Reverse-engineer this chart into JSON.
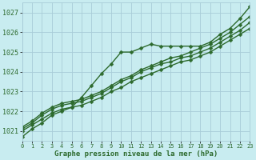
{
  "title": "Graphe pression niveau de la mer (hPa)",
  "bg_color": "#c8ecf0",
  "grid_color": "#a8ccd8",
  "line_color": "#2d6a2d",
  "xlim": [
    0,
    23
  ],
  "ylim": [
    1020.5,
    1027.5
  ],
  "yticks": [
    1021,
    1022,
    1023,
    1024,
    1025,
    1026,
    1027
  ],
  "xticks": [
    0,
    1,
    2,
    3,
    4,
    5,
    6,
    7,
    8,
    9,
    10,
    11,
    12,
    13,
    14,
    15,
    16,
    17,
    18,
    19,
    20,
    21,
    22,
    23
  ],
  "series": [
    {
      "x": [
        0,
        1,
        2,
        3,
        4,
        5,
        6,
        7,
        8,
        9,
        10,
        11,
        12,
        13,
        14,
        15,
        16,
        17,
        18,
        19,
        20,
        21,
        22,
        23
      ],
      "y": [
        1020.7,
        1021.1,
        1021.4,
        1021.8,
        1022.0,
        1022.2,
        1022.7,
        1023.3,
        1023.9,
        1024.4,
        1025.0,
        1025.0,
        1025.2,
        1025.4,
        1025.3,
        1025.3,
        1025.3,
        1025.3,
        1025.3,
        1025.5,
        1025.9,
        1026.2,
        1026.7,
        1027.3
      ],
      "marker": "D",
      "markersize": 2.5,
      "linewidth": 1.0
    },
    {
      "x": [
        0,
        1,
        2,
        3,
        4,
        5,
        6,
        7,
        8,
        9,
        10,
        11,
        12,
        13,
        14,
        15,
        16,
        17,
        18,
        19,
        20,
        21,
        22,
        23
      ],
      "y": [
        1021.0,
        1021.3,
        1021.6,
        1021.9,
        1022.1,
        1022.2,
        1022.3,
        1022.5,
        1022.7,
        1023.0,
        1023.2,
        1023.5,
        1023.7,
        1023.9,
        1024.1,
        1024.3,
        1024.5,
        1024.6,
        1024.8,
        1025.0,
        1025.3,
        1025.6,
        1025.9,
        1026.2
      ],
      "marker": "D",
      "markersize": 2.5,
      "linewidth": 1.0
    },
    {
      "x": [
        0,
        1,
        2,
        3,
        4,
        5,
        6,
        7,
        8,
        9,
        10,
        11,
        12,
        13,
        14,
        15,
        16,
        17,
        18,
        19,
        20,
        21,
        22,
        23
      ],
      "y": [
        1021.1,
        1021.4,
        1021.8,
        1022.1,
        1022.3,
        1022.4,
        1022.5,
        1022.7,
        1022.9,
        1023.2,
        1023.5,
        1023.7,
        1024.0,
        1024.2,
        1024.4,
        1024.5,
        1024.7,
        1024.8,
        1025.0,
        1025.2,
        1025.5,
        1025.8,
        1026.1,
        1026.5
      ],
      "marker": "D",
      "markersize": 2.5,
      "linewidth": 1.0
    },
    {
      "x": [
        0,
        1,
        2,
        3,
        4,
        5,
        6,
        7,
        8,
        9,
        10,
        11,
        12,
        13,
        14,
        15,
        16,
        17,
        18,
        19,
        20,
        21,
        22,
        23
      ],
      "y": [
        1021.2,
        1021.5,
        1021.9,
        1022.2,
        1022.4,
        1022.5,
        1022.6,
        1022.8,
        1023.0,
        1023.3,
        1023.6,
        1023.8,
        1024.1,
        1024.3,
        1024.5,
        1024.7,
        1024.8,
        1025.0,
        1025.2,
        1025.4,
        1025.7,
        1026.0,
        1026.4,
        1026.8
      ],
      "marker": "D",
      "markersize": 2.5,
      "linewidth": 1.0
    }
  ]
}
